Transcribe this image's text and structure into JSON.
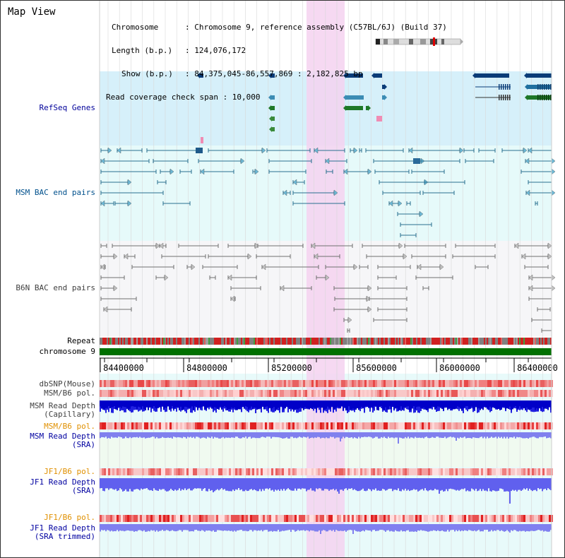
{
  "header": {
    "title": "Map View",
    "chromosome_key": "Chromosome",
    "chromosome_val": ": Chromosome 9, reference assembly (C57BL/6J) (Build 37)",
    "length_key": "Length (b.p.)",
    "length_val": ": 124,076,172",
    "show_key": "Show (b.p.)",
    "show_val": ": 84,375,045-86,557,869 : 2,182,825 bp",
    "coverage": "Read coverage check span : 10,000"
  },
  "tracks": {
    "refseq": "RefSeq Genes",
    "msm_bac": "MSM BAC end pairs",
    "b6n_bac": "B6N BAC end pairs",
    "repeat": "Repeat",
    "chromosome": "chromosome 9",
    "dbsnp": "dbSNP(Mouse)",
    "msm_b6_pol": "MSM/B6 pol.",
    "msm_read_depth_cap_1": "MSM Read Depth",
    "msm_read_depth_cap_2": "(Capillary)",
    "msm_b6_pol_2": "MSM/B6 pol.",
    "msm_sra_1": "MSM Read Depth",
    "msm_sra_2": "(SRA)",
    "jf1_b6_pol": "JF1/B6 pol.",
    "jf1_sra_1": "JF1 Read Depth",
    "jf1_sra_2": "(SRA)",
    "jf1_b6_pol_2": "JF1/B6 pol.",
    "jf1_trim_1": "JF1 Read Depth",
    "jf1_trim_2": "(SRA trimmed)"
  },
  "axis": {
    "ticks": [
      "84400000",
      "84800000",
      "85200000",
      "85600000",
      "86000000",
      "86400000"
    ]
  },
  "colors": {
    "refseq_bg": "#d6f0fa",
    "msm_bg": "#e6fafa",
    "b6n_bg": "#f4f4f8",
    "highlight": "#f5d2f0",
    "refseq_label": "#00009a",
    "msm_label": "#00508c",
    "b6n_label": "#404040",
    "orange_label": "#e09000",
    "blue_label": "#0000a0",
    "chrom_green": "#007000"
  }
}
